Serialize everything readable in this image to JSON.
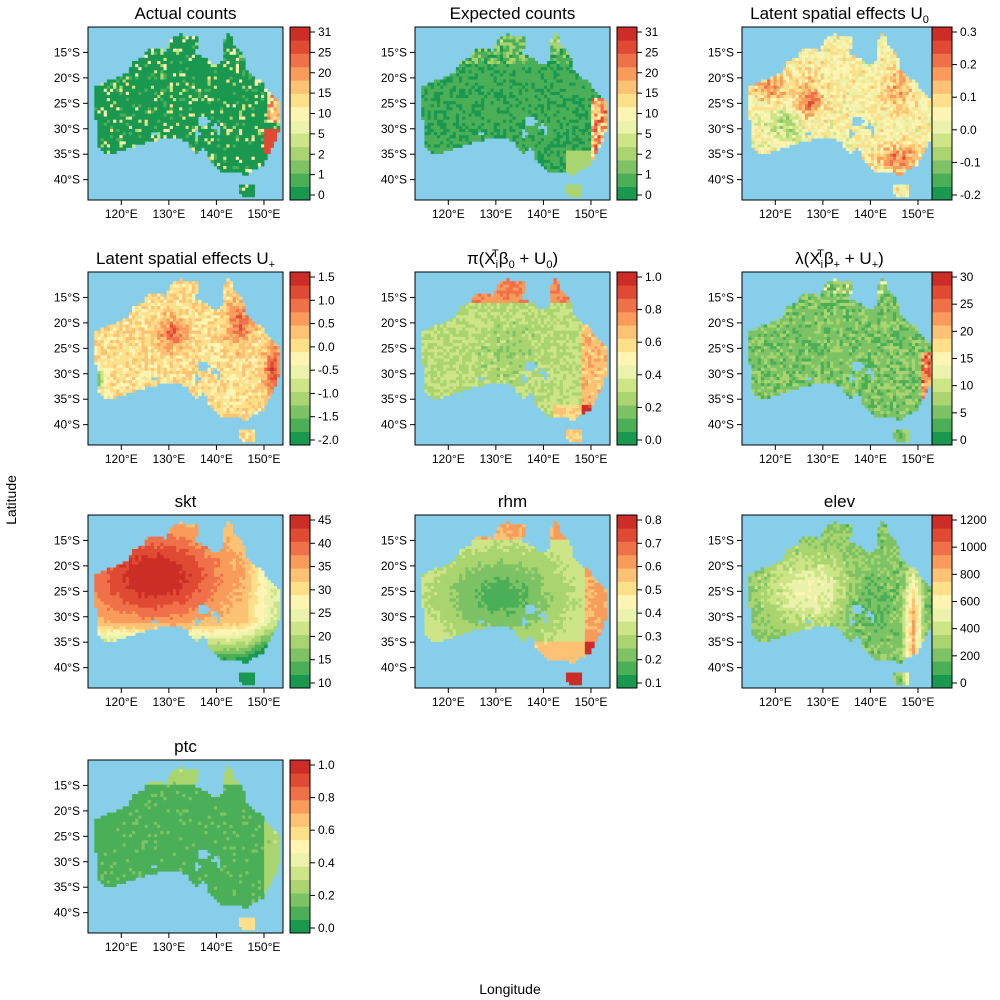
{
  "figure": {
    "xlabel": "Longitude",
    "ylabel": "Latitude"
  },
  "colors": {
    "ocean": "#87CEEB",
    "palette": [
      "#1A9850",
      "#4BAF58",
      "#7DC365",
      "#A9D46F",
      "#CDE487",
      "#EAF2AB",
      "#FFF5B3",
      "#FEE08B",
      "#FDC274",
      "#F99C5B",
      "#F0704A",
      "#E04A33",
      "#CC2E27"
    ]
  },
  "axes": {
    "x_ticks": [
      "120°E",
      "130°E",
      "140°E",
      "150°E"
    ],
    "y_ticks": [
      "15°S",
      "20°S",
      "25°S",
      "30°S",
      "35°S",
      "40°S"
    ],
    "lon_range": [
      113,
      154
    ],
    "lat_range": [
      -44,
      -10
    ]
  },
  "chart_data": [
    {
      "type": "heatmap",
      "title": "Actual counts",
      "field": "counts",
      "legend_ticks": [
        "31",
        "25",
        "20",
        "15",
        "10",
        "5",
        "2",
        "1",
        "0"
      ]
    },
    {
      "type": "heatmap",
      "title": "Expected counts",
      "field": "expected",
      "legend_ticks": [
        "31",
        "25",
        "20",
        "15",
        "10",
        "5",
        "2",
        "1",
        "0"
      ]
    },
    {
      "type": "heatmap",
      "title": "Latent spatial effects U",
      "title_sub": "0",
      "field": "u0",
      "legend_ticks": [
        "0.3",
        "0.2",
        "0.1",
        "0.0",
        "-0.1",
        "-0.2"
      ]
    },
    {
      "type": "heatmap",
      "title": "Latent spatial effects U",
      "title_sub": "+",
      "field": "uplus",
      "legend_ticks": [
        "1.5",
        "1.0",
        "0.5",
        "0.0",
        "-0.5",
        "-1.0",
        "-1.5",
        "-2.0"
      ]
    },
    {
      "type": "heatmap",
      "title": "π(X",
      "title_parts": [
        "π(X",
        "i",
        "T",
        "β",
        "0",
        " + U",
        "0",
        ")"
      ],
      "field": "pi",
      "legend_ticks": [
        "1.0",
        "0.8",
        "0.6",
        "0.4",
        "0.2",
        "0.0"
      ]
    },
    {
      "type": "heatmap",
      "title": "λ(X",
      "title_parts": [
        "λ(X",
        "i",
        "T",
        "β",
        "+",
        " + U",
        "+",
        ")"
      ],
      "field": "lambda",
      "legend_ticks": [
        "30",
        "25",
        "20",
        "15",
        "10",
        "5",
        "0"
      ]
    },
    {
      "type": "heatmap",
      "title": "skt",
      "field": "skt",
      "legend_ticks": [
        "45",
        "40",
        "35",
        "30",
        "25",
        "20",
        "15",
        "10"
      ]
    },
    {
      "type": "heatmap",
      "title": "rhm",
      "field": "rhm",
      "legend_ticks": [
        "0.8",
        "0.7",
        "0.6",
        "0.5",
        "0.4",
        "0.3",
        "0.2",
        "0.1"
      ]
    },
    {
      "type": "heatmap",
      "title": "elev",
      "field": "elev",
      "legend_ticks": [
        "1200",
        "1000",
        "800",
        "600",
        "400",
        "200",
        "0"
      ]
    },
    {
      "type": "heatmap",
      "title": "ptc",
      "field": "ptc",
      "legend_ticks": [
        "1.0",
        "0.8",
        "0.6",
        "0.4",
        "0.2",
        "0.0"
      ]
    }
  ]
}
